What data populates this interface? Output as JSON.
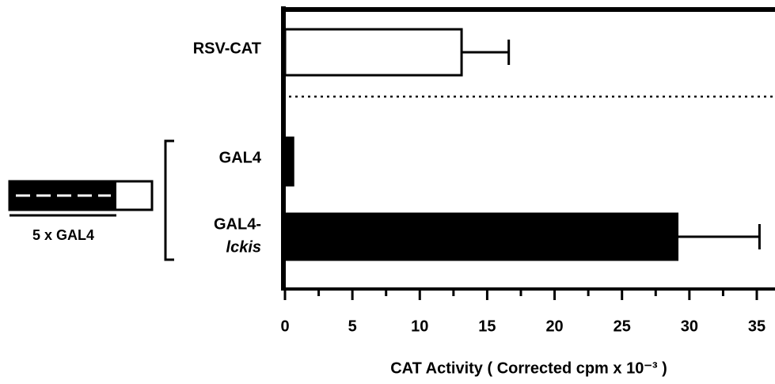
{
  "chart_data": {
    "type": "hbar",
    "categories": [
      "RSV-CAT",
      "GAL4",
      [
        "GAL4-",
        "lckis"
      ]
    ],
    "values": [
      13.1,
      0.6,
      29.1
    ],
    "errors": [
      3.5,
      null,
      6.1
    ],
    "colors": [
      "#ffffff",
      "#000000",
      "#000000"
    ],
    "xlim": [
      0,
      35
    ],
    "xticks": [
      0,
      5,
      10,
      15,
      20,
      25,
      30,
      35
    ],
    "xminorticks": [
      2.5,
      7.5,
      12.5,
      17.5,
      22.5,
      27.5,
      32.5
    ],
    "xlabel": "CAT Activity ( Corrected cpm x 10⁻³ )",
    "construct_label": "5 x GAL4"
  }
}
